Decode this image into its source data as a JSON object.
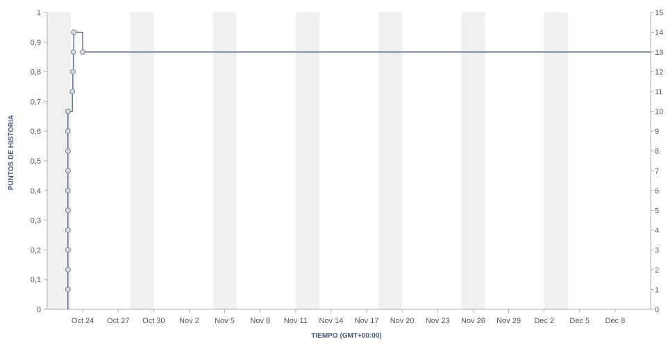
{
  "chart_data": {
    "type": "line",
    "step": "after",
    "xlabel": "TIEMPO (GMT+00:00)",
    "ylabel": "PUNTOS DE HISTORIA",
    "ylabel_right": "",
    "ylim": [
      0,
      1
    ],
    "ylim_right": [
      0,
      15
    ],
    "y_ticks": [
      "0",
      "0,1",
      "0,2",
      "0,3",
      "0,4",
      "0,5",
      "0,6",
      "0,7",
      "0,8",
      "0,9",
      "1"
    ],
    "y_ticks_right": [
      "0",
      "1",
      "2",
      "3",
      "4",
      "5",
      "6",
      "7",
      "8",
      "9",
      "10",
      "11",
      "12",
      "13",
      "14",
      "15"
    ],
    "x_domain": [
      "2023-10-21",
      "2023-12-11"
    ],
    "x_ticks": [
      {
        "date": "2023-10-24",
        "label": "Oct 24"
      },
      {
        "date": "2023-10-27",
        "label": "Oct 27"
      },
      {
        "date": "2023-10-30",
        "label": "Oct 30"
      },
      {
        "date": "2023-11-02",
        "label": "Nov 2"
      },
      {
        "date": "2023-11-05",
        "label": "Nov 5"
      },
      {
        "date": "2023-11-08",
        "label": "Nov 8"
      },
      {
        "date": "2023-11-11",
        "label": "Nov 11"
      },
      {
        "date": "2023-11-14",
        "label": "Nov 14"
      },
      {
        "date": "2023-11-17",
        "label": "Nov 17"
      },
      {
        "date": "2023-11-20",
        "label": "Nov 20"
      },
      {
        "date": "2023-11-23",
        "label": "Nov 23"
      },
      {
        "date": "2023-11-26",
        "label": "Nov 26"
      },
      {
        "date": "2023-11-29",
        "label": "Nov 29"
      },
      {
        "date": "2023-12-02",
        "label": "Dec 2"
      },
      {
        "date": "2023-12-05",
        "label": "Dec 5"
      },
      {
        "date": "2023-12-08",
        "label": "Dec 8"
      }
    ],
    "weekend_bands": [
      [
        "2023-10-21",
        "2023-10-23"
      ],
      [
        "2023-10-28",
        "2023-10-30"
      ],
      [
        "2023-11-04",
        "2023-11-06"
      ],
      [
        "2023-11-11",
        "2023-11-13"
      ],
      [
        "2023-11-18",
        "2023-11-20"
      ],
      [
        "2023-11-25",
        "2023-11-27"
      ],
      [
        "2023-12-02",
        "2023-12-04"
      ]
    ],
    "series": [
      {
        "color": "#5b7291",
        "points": [
          {
            "x": "2023-10-22T18:00",
            "y": 0
          },
          {
            "x": "2023-10-22T18:00",
            "y": 0.0667
          },
          {
            "x": "2023-10-22T18:00",
            "y": 0.1333
          },
          {
            "x": "2023-10-22T18:00",
            "y": 0.2
          },
          {
            "x": "2023-10-22T18:00",
            "y": 0.2667
          },
          {
            "x": "2023-10-22T18:00",
            "y": 0.3333
          },
          {
            "x": "2023-10-22T18:00",
            "y": 0.4
          },
          {
            "x": "2023-10-22T18:00",
            "y": 0.4667
          },
          {
            "x": "2023-10-22T18:00",
            "y": 0.5333
          },
          {
            "x": "2023-10-22T18:00",
            "y": 0.6
          },
          {
            "x": "2023-10-22T18:00",
            "y": 0.6667
          },
          {
            "x": "2023-10-23T03:00",
            "y": 0.7333
          },
          {
            "x": "2023-10-23T04:00",
            "y": 0.8
          },
          {
            "x": "2023-10-23T05:00",
            "y": 0.8667
          },
          {
            "x": "2023-10-23T06:00",
            "y": 0.9333
          },
          {
            "x": "2023-10-24T00:00",
            "y": 0.8667
          },
          {
            "x": "2023-12-11T00:00",
            "y": 0.8667
          }
        ],
        "markers": [
          {
            "x": "2023-10-22T18:00",
            "y": 0.0667
          },
          {
            "x": "2023-10-22T18:00",
            "y": 0.1333
          },
          {
            "x": "2023-10-22T18:00",
            "y": 0.2
          },
          {
            "x": "2023-10-22T18:00",
            "y": 0.2667
          },
          {
            "x": "2023-10-22T18:00",
            "y": 0.3333
          },
          {
            "x": "2023-10-22T18:00",
            "y": 0.4
          },
          {
            "x": "2023-10-22T18:00",
            "y": 0.4667
          },
          {
            "x": "2023-10-22T18:00",
            "y": 0.5333
          },
          {
            "x": "2023-10-22T18:00",
            "y": 0.6
          },
          {
            "x": "2023-10-22T18:00",
            "y": 0.6667
          },
          {
            "x": "2023-10-23T03:00",
            "y": 0.7333
          },
          {
            "x": "2023-10-23T04:00",
            "y": 0.8
          },
          {
            "x": "2023-10-23T05:00",
            "y": 0.8667
          },
          {
            "x": "2023-10-23T06:00",
            "y": 0.9333
          },
          {
            "x": "2023-10-24T00:00",
            "y": 0.8667
          }
        ]
      }
    ],
    "grid": false,
    "legend": "none"
  },
  "colors": {
    "line": "#5b7291",
    "marker_fill": "#d6d9de",
    "marker_stroke": "#7d8794",
    "weekend_band": "#f0f0f0",
    "axis": "#b0b0b0",
    "axis_title": "#4a5d7e"
  }
}
